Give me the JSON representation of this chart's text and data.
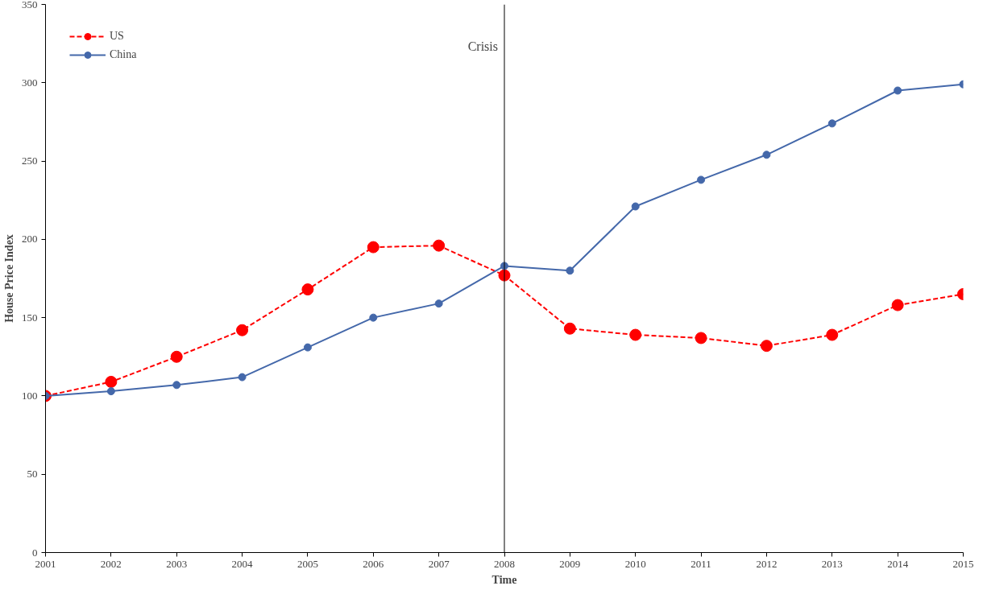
{
  "chart_data": {
    "type": "line",
    "xlabel": "Time",
    "ylabel": "House Price Index",
    "x": [
      2001,
      2002,
      2003,
      2004,
      2005,
      2006,
      2007,
      2008,
      2009,
      2010,
      2011,
      2012,
      2013,
      2014,
      2015
    ],
    "series": [
      {
        "name": "US",
        "color": "#ff0000",
        "line_style": "dashed",
        "values": [
          100,
          109,
          125,
          142,
          168,
          195,
          196,
          177,
          143,
          139,
          137,
          132,
          139,
          158,
          165
        ]
      },
      {
        "name": "China",
        "color": "#4468aa",
        "line_style": "solid",
        "values": [
          100,
          103,
          107,
          112,
          131,
          150,
          159,
          183,
          180,
          221,
          238,
          254,
          274,
          295,
          299
        ]
      }
    ],
    "xlim": [
      2001,
      2015
    ],
    "xticks": [
      2001,
      2002,
      2003,
      2004,
      2005,
      2006,
      2007,
      2008,
      2009,
      2010,
      2011,
      2012,
      2013,
      2014,
      2015
    ],
    "ylim": [
      0,
      350
    ],
    "yticks": [
      0,
      50,
      100,
      150,
      200,
      250,
      300,
      350
    ],
    "ref_lines": [
      {
        "axis": "x",
        "value": 2008,
        "label": "Crisis",
        "color": "#000000"
      }
    ],
    "grid": false,
    "legend": "top left",
    "marker": "circle"
  }
}
